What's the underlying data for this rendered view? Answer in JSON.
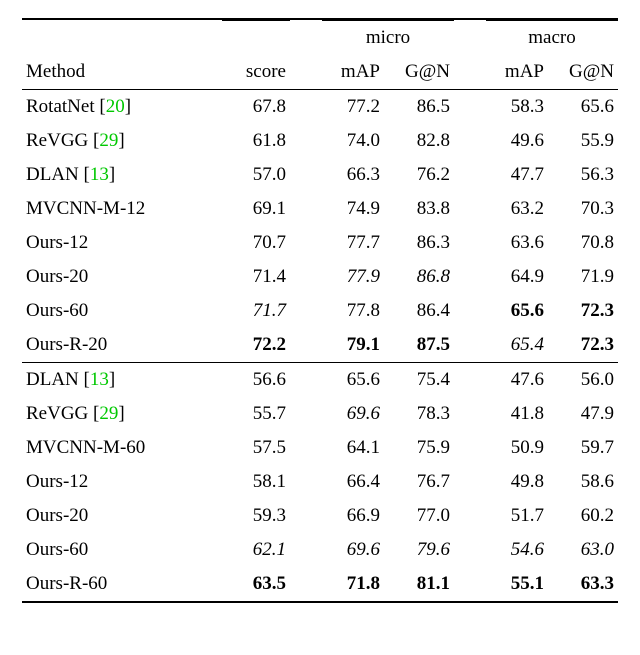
{
  "headers": {
    "method": "Method",
    "score": "score",
    "micro": "micro",
    "macro": "macro",
    "mAP": "mAP",
    "GN": "G@N"
  },
  "cite_color": "#00c800",
  "rows_top": [
    {
      "method_pre": "RotatNet [",
      "cite": "20",
      "method_post": "]",
      "score": "67.8",
      "mmap": "77.2",
      "mgn": "86.5",
      "Mmap": "58.3",
      "Mgn": "65.6",
      "style": {}
    },
    {
      "method_pre": "ReVGG [",
      "cite": "29",
      "method_post": "]",
      "score": "61.8",
      "mmap": "74.0",
      "mgn": "82.8",
      "Mmap": "49.6",
      "Mgn": "55.9",
      "style": {}
    },
    {
      "method_pre": "DLAN [",
      "cite": "13",
      "method_post": "]",
      "score": "57.0",
      "mmap": "66.3",
      "mgn": "76.2",
      "Mmap": "47.7",
      "Mgn": "56.3",
      "style": {}
    },
    {
      "method_pre": "MVCNN-M-12",
      "cite": "",
      "method_post": "",
      "score": "69.1",
      "mmap": "74.9",
      "mgn": "83.8",
      "Mmap": "63.2",
      "Mgn": "70.3",
      "style": {}
    },
    {
      "method_pre": "Ours-12",
      "cite": "",
      "method_post": "",
      "score": "70.7",
      "mmap": "77.7",
      "mgn": "86.3",
      "Mmap": "63.6",
      "Mgn": "70.8",
      "style": {}
    },
    {
      "method_pre": "Ours-20",
      "cite": "",
      "method_post": "",
      "score": "71.4",
      "mmap": "77.9",
      "mgn": "86.8",
      "Mmap": "64.9",
      "Mgn": "71.9",
      "style": {
        "mmap": "ital",
        "mgn": "ital"
      }
    },
    {
      "method_pre": "Ours-60",
      "cite": "",
      "method_post": "",
      "score": "71.7",
      "mmap": "77.8",
      "mgn": "86.4",
      "Mmap": "65.6",
      "Mgn": "72.3",
      "style": {
        "score": "ital",
        "Mmap": "bold",
        "Mgn": "bold"
      }
    },
    {
      "method_pre": "Ours-R-20",
      "cite": "",
      "method_post": "",
      "score": "72.2",
      "mmap": "79.1",
      "mgn": "87.5",
      "Mmap": "65.4",
      "Mgn": "72.3",
      "style": {
        "score": "bold",
        "mmap": "bold",
        "mgn": "bold",
        "Mmap": "ital",
        "Mgn": "bold"
      }
    }
  ],
  "rows_bot": [
    {
      "method_pre": "DLAN [",
      "cite": "13",
      "method_post": "]",
      "score": "56.6",
      "mmap": "65.6",
      "mgn": "75.4",
      "Mmap": "47.6",
      "Mgn": "56.0",
      "style": {}
    },
    {
      "method_pre": "ReVGG [",
      "cite": "29",
      "method_post": "]",
      "score": "55.7",
      "mmap": "69.6",
      "mgn": "78.3",
      "Mmap": "41.8",
      "Mgn": "47.9",
      "style": {
        "mmap": "ital"
      }
    },
    {
      "method_pre": "MVCNN-M-60",
      "cite": "",
      "method_post": "",
      "score": "57.5",
      "mmap": "64.1",
      "mgn": "75.9",
      "Mmap": "50.9",
      "Mgn": "59.7",
      "style": {}
    },
    {
      "method_pre": "Ours-12",
      "cite": "",
      "method_post": "",
      "score": "58.1",
      "mmap": "66.4",
      "mgn": "76.7",
      "Mmap": "49.8",
      "Mgn": "58.6",
      "style": {}
    },
    {
      "method_pre": "Ours-20",
      "cite": "",
      "method_post": "",
      "score": "59.3",
      "mmap": "66.9",
      "mgn": "77.0",
      "Mmap": "51.7",
      "Mgn": "60.2",
      "style": {}
    },
    {
      "method_pre": "Ours-60",
      "cite": "",
      "method_post": "",
      "score": "62.1",
      "mmap": "69.6",
      "mgn": "79.6",
      "Mmap": "54.6",
      "Mgn": "63.0",
      "style": {
        "score": "ital",
        "mmap": "ital",
        "mgn": "ital",
        "Mmap": "ital",
        "Mgn": "ital"
      }
    },
    {
      "method_pre": "Ours-R-60",
      "cite": "",
      "method_post": "",
      "score": "63.5",
      "mmap": "71.8",
      "mgn": "81.1",
      "Mmap": "55.1",
      "Mgn": "63.3",
      "style": {
        "score": "bold",
        "mmap": "bold",
        "mgn": "bold",
        "Mmap": "bold",
        "Mgn": "bold"
      }
    }
  ]
}
